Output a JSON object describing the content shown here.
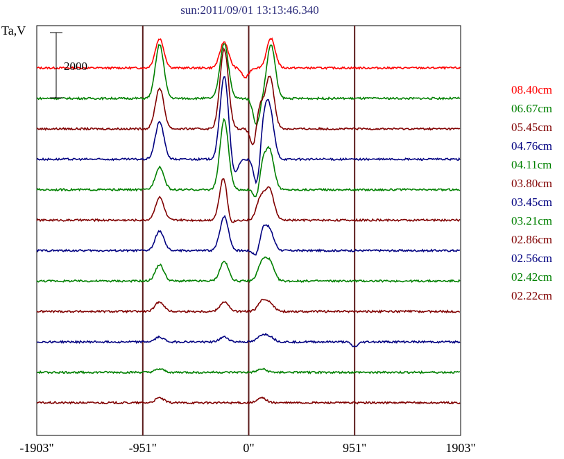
{
  "chart_data": {
    "type": "line",
    "title": "sun:2011/09/01 13:13:46.340",
    "ylabel": "Ta,V",
    "xlabel": "",
    "x_ticks": [
      {
        "value": -1903,
        "label": "-1903\""
      },
      {
        "value": -951,
        "label": "-951\""
      },
      {
        "value": 0,
        "label": "0\""
      },
      {
        "value": 951,
        "label": "951\""
      },
      {
        "value": 1903,
        "label": "1903\""
      }
    ],
    "xlim": [
      -1903,
      1903
    ],
    "vertical_lines": [
      -951,
      0,
      951
    ],
    "scale_bar": {
      "label": "2000",
      "value": 2000
    },
    "grid": false,
    "legend_placement": "right",
    "series": [
      {
        "name": "08.40cm",
        "color": "#ff0000",
        "baseline": 0,
        "peaks": [
          [
            -800,
            900
          ],
          [
            -220,
            800
          ],
          [
            200,
            900
          ]
        ],
        "dips": [
          [
            -30,
            300
          ]
        ]
      },
      {
        "name": "06.67cm",
        "color": "#008000",
        "baseline": -1,
        "peaks": [
          [
            -800,
            1650
          ],
          [
            -220,
            1700
          ],
          [
            200,
            1650
          ]
        ],
        "dips": [
          [
            70,
            800
          ]
        ]
      },
      {
        "name": "05.45cm",
        "color": "#800000",
        "baseline": -2,
        "peaks": [
          [
            -800,
            1250
          ],
          [
            -220,
            2450
          ],
          [
            90,
            900
          ],
          [
            190,
            1600
          ]
        ],
        "dips": [
          [
            50,
            900
          ]
        ]
      },
      {
        "name": "04.76cm",
        "color": "#000080",
        "baseline": -3,
        "peaks": [
          [
            -800,
            1150
          ],
          [
            -220,
            2550
          ],
          [
            130,
            1150
          ],
          [
            190,
            1350
          ]
        ],
        "dips": [
          [
            -130,
            500
          ],
          [
            80,
            1100
          ]
        ]
      },
      {
        "name": "04.11cm",
        "color": "#008000",
        "baseline": -4,
        "peaks": [
          [
            -800,
            700
          ],
          [
            -220,
            2150
          ],
          [
            110,
            1000
          ],
          [
            190,
            1150
          ]
        ],
        "dips": [
          [
            80,
            800
          ]
        ]
      },
      {
        "name": "03.80cm",
        "color": "#800000",
        "baseline": -5,
        "peaks": [
          [
            -800,
            700
          ],
          [
            -220,
            1450
          ],
          [
            110,
            700
          ],
          [
            190,
            900
          ]
        ],
        "dips": [
          [
            -180,
            500
          ]
        ]
      },
      {
        "name": "03.45cm",
        "color": "#000080",
        "baseline": -6,
        "peaks": [
          [
            -800,
            600
          ],
          [
            -220,
            1050
          ],
          [
            120,
            700
          ],
          [
            190,
            550
          ]
        ],
        "dips": [
          [
            80,
            400
          ]
        ]
      },
      {
        "name": "03.21cm",
        "color": "#008000",
        "baseline": -7,
        "peaks": [
          [
            -800,
            500
          ],
          [
            -220,
            600
          ],
          [
            120,
            550
          ],
          [
            190,
            550
          ]
        ],
        "dips": []
      },
      {
        "name": "02.86cm",
        "color": "#800000",
        "baseline": -8,
        "peaks": [
          [
            -800,
            300
          ],
          [
            -220,
            300
          ],
          [
            120,
            300
          ],
          [
            190,
            250
          ]
        ],
        "dips": []
      },
      {
        "name": "02.56cm",
        "color": "#000080",
        "baseline": -9,
        "peaks": [
          [
            -800,
            150
          ],
          [
            -220,
            150
          ],
          [
            120,
            200
          ],
          [
            190,
            150
          ]
        ],
        "dips": [
          [
            951,
            150
          ]
        ]
      },
      {
        "name": "02.42cm",
        "color": "#008000",
        "baseline": -10,
        "peaks": [
          [
            -800,
            100
          ],
          [
            120,
            100
          ]
        ],
        "dips": []
      },
      {
        "name": "02.22cm",
        "color": "#800000",
        "baseline": -11,
        "peaks": [
          [
            -800,
            150
          ],
          [
            120,
            150
          ]
        ],
        "dips": []
      }
    ]
  }
}
